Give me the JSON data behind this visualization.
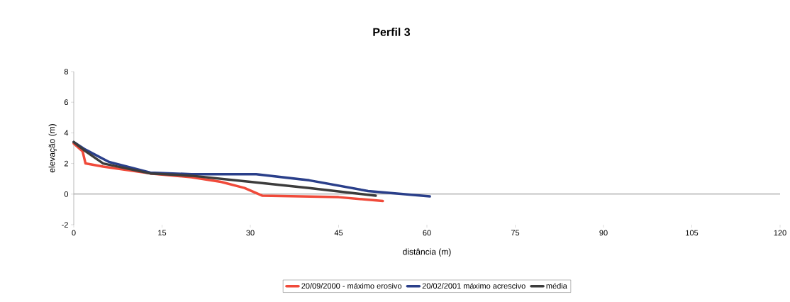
{
  "chart_data": {
    "type": "line",
    "title": "Perfil 3",
    "xlabel": "distância (m)",
    "ylabel": "elevação (m)",
    "xlim": [
      0,
      120
    ],
    "xticks": [
      0,
      15,
      30,
      45,
      60,
      75,
      90,
      105,
      120
    ],
    "ylim": [
      -2,
      8
    ],
    "yticks": [
      -2,
      0,
      2,
      4,
      6,
      8
    ],
    "grid": false,
    "ref_lines": [
      {
        "axis": "y",
        "value": 0,
        "color": "#8c8c8c"
      }
    ],
    "legend": "bottom",
    "marker": "none",
    "line_style": "solid",
    "series": [
      {
        "name": "20/09/2000 - máximo erosivo",
        "color": "#f04a3a",
        "x": [
          0,
          1.5,
          2,
          5,
          13,
          20,
          25,
          29,
          32,
          45,
          52.5
        ],
        "values": [
          3.3,
          2.8,
          2.0,
          1.8,
          1.35,
          1.1,
          0.8,
          0.4,
          -0.1,
          -0.2,
          -0.45
        ]
      },
      {
        "name": "20/02/2001 máximo acrescivo",
        "color": "#2a3f8a",
        "x": [
          0,
          2,
          6,
          13,
          20,
          31,
          40,
          50,
          60.5
        ],
        "values": [
          3.4,
          2.9,
          2.1,
          1.4,
          1.3,
          1.3,
          0.9,
          0.2,
          -0.15
        ]
      },
      {
        "name": "média",
        "color": "#3c3c3c",
        "x": [
          0,
          2,
          5,
          13,
          20,
          30,
          40,
          51.3
        ],
        "values": [
          3.4,
          2.8,
          2.0,
          1.35,
          1.2,
          0.8,
          0.4,
          -0.1
        ]
      }
    ]
  }
}
